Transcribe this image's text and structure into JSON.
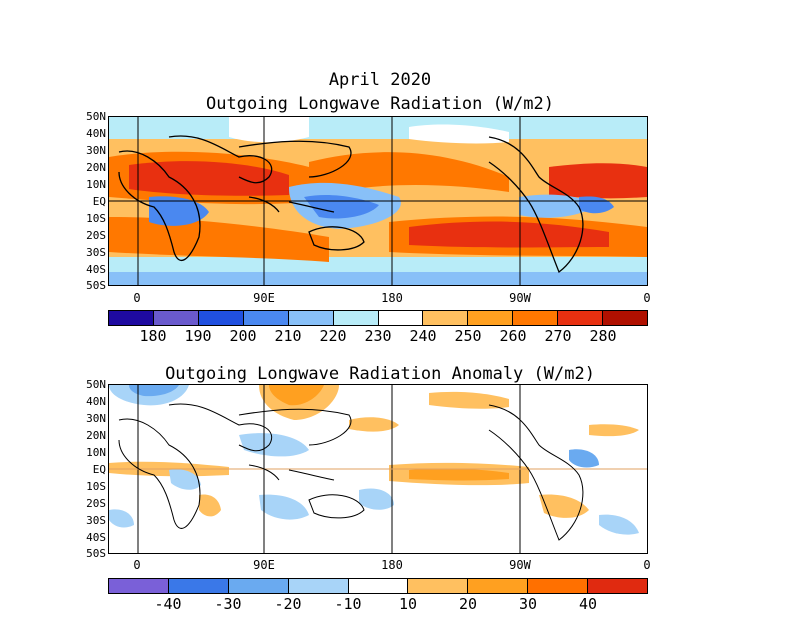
{
  "title": "April 2020",
  "panels": [
    {
      "title": "Outgoing Longwave Radiation (W/m2)",
      "lat_labels": [
        "50N",
        "40N",
        "30N",
        "20N",
        "10N",
        "EQ",
        "10S",
        "20S",
        "30S",
        "40S",
        "50S"
      ],
      "lon_labels": [
        "0",
        "90E",
        "180",
        "90W",
        "0"
      ],
      "colorbar": {
        "colors": [
          "#1e0aa0",
          "#6a5acd",
          "#2050e0",
          "#4a88f0",
          "#88c0f8",
          "#b8ecf8",
          "#ffffff",
          "#ffc060",
          "#ffa020",
          "#ff7800",
          "#e83010",
          "#b01000"
        ],
        "labels": [
          "180",
          "190",
          "200",
          "210",
          "220",
          "230",
          "240",
          "250",
          "260",
          "270",
          "280"
        ]
      }
    },
    {
      "title": "Outgoing Longwave Radiation Anomaly (W/m2)",
      "lat_labels": [
        "50N",
        "40N",
        "30N",
        "20N",
        "10N",
        "EQ",
        "10S",
        "20S",
        "30S",
        "40S",
        "50S"
      ],
      "lon_labels": [
        "0",
        "90E",
        "180",
        "90W",
        "0"
      ],
      "colorbar": {
        "colors": [
          "#7a60d8",
          "#3a78e8",
          "#6aaaf0",
          "#a8d4f8",
          "#ffffff",
          "#ffc060",
          "#ffa020",
          "#ff7000",
          "#e02a10"
        ],
        "labels": [
          "-40",
          "-30",
          "-20",
          "-10",
          "10",
          "20",
          "30",
          "40"
        ]
      }
    }
  ]
}
